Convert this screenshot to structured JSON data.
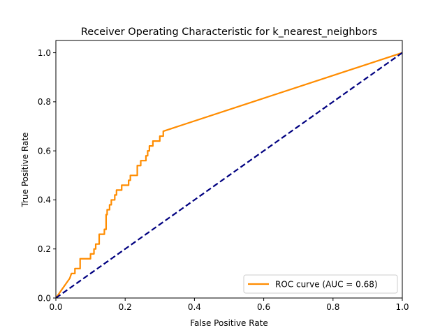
{
  "chart_data": {
    "type": "line",
    "title": "Receiver Operating Characteristic for k_nearest_neighbors",
    "xlabel": "False Positive Rate",
    "ylabel": "True Positive Rate",
    "xlim": [
      0.0,
      1.0
    ],
    "ylim": [
      0.0,
      1.05
    ],
    "xticks": [
      "0.0",
      "0.2",
      "0.4",
      "0.6",
      "0.8",
      "1.0"
    ],
    "yticks": [
      "0.0",
      "0.2",
      "0.4",
      "0.6",
      "0.8",
      "1.0"
    ],
    "grid": false,
    "legend_position": "lower-right",
    "series": [
      {
        "name": "ROC curve (AUC = 0.68)",
        "color": "#ff8c00",
        "style": "solid",
        "points": [
          [
            0.0,
            0.0
          ],
          [
            0.01,
            0.02
          ],
          [
            0.02,
            0.04
          ],
          [
            0.03,
            0.06
          ],
          [
            0.04,
            0.08
          ],
          [
            0.045,
            0.1
          ],
          [
            0.055,
            0.1
          ],
          [
            0.055,
            0.12
          ],
          [
            0.07,
            0.12
          ],
          [
            0.07,
            0.16
          ],
          [
            0.1,
            0.16
          ],
          [
            0.1,
            0.18
          ],
          [
            0.11,
            0.18
          ],
          [
            0.11,
            0.2
          ],
          [
            0.115,
            0.2
          ],
          [
            0.115,
            0.22
          ],
          [
            0.125,
            0.22
          ],
          [
            0.125,
            0.26
          ],
          [
            0.14,
            0.26
          ],
          [
            0.14,
            0.28
          ],
          [
            0.145,
            0.28
          ],
          [
            0.145,
            0.34
          ],
          [
            0.148,
            0.34
          ],
          [
            0.148,
            0.36
          ],
          [
            0.155,
            0.36
          ],
          [
            0.155,
            0.38
          ],
          [
            0.16,
            0.38
          ],
          [
            0.16,
            0.4
          ],
          [
            0.17,
            0.4
          ],
          [
            0.17,
            0.42
          ],
          [
            0.175,
            0.42
          ],
          [
            0.175,
            0.44
          ],
          [
            0.19,
            0.44
          ],
          [
            0.19,
            0.46
          ],
          [
            0.21,
            0.46
          ],
          [
            0.21,
            0.48
          ],
          [
            0.215,
            0.48
          ],
          [
            0.215,
            0.5
          ],
          [
            0.235,
            0.5
          ],
          [
            0.235,
            0.54
          ],
          [
            0.245,
            0.54
          ],
          [
            0.245,
            0.56
          ],
          [
            0.26,
            0.56
          ],
          [
            0.26,
            0.58
          ],
          [
            0.265,
            0.58
          ],
          [
            0.265,
            0.6
          ],
          [
            0.27,
            0.6
          ],
          [
            0.27,
            0.62
          ],
          [
            0.28,
            0.62
          ],
          [
            0.28,
            0.64
          ],
          [
            0.3,
            0.64
          ],
          [
            0.3,
            0.66
          ],
          [
            0.31,
            0.66
          ],
          [
            0.31,
            0.68
          ],
          [
            1.0,
            1.0
          ]
        ]
      },
      {
        "name": "",
        "color": "#000080",
        "style": "dashed",
        "points": [
          [
            0.0,
            0.0
          ],
          [
            1.0,
            1.0
          ]
        ]
      }
    ]
  }
}
